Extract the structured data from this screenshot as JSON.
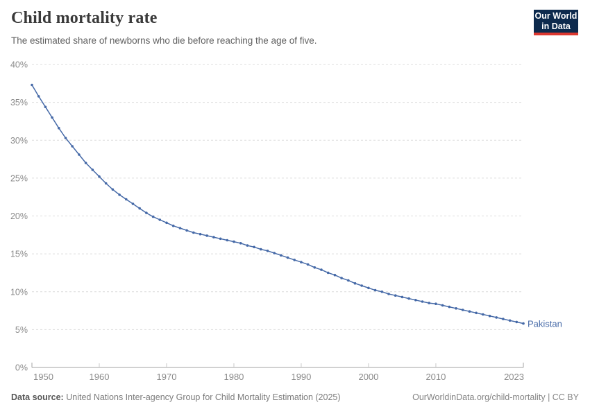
{
  "header": {
    "title": "Child mortality rate",
    "subtitle": "The estimated share of newborns who die before reaching the age of five."
  },
  "logo": {
    "line1": "Our World",
    "line2": "in Data",
    "bg_color": "#0d2a4d",
    "accent_color": "#dc3830"
  },
  "chart_data": {
    "type": "line",
    "title": "Child mortality rate",
    "xlabel": "",
    "ylabel": "",
    "unit": "%",
    "ylim": [
      0,
      40
    ],
    "yticks": [
      0,
      5,
      10,
      15,
      20,
      25,
      30,
      35,
      40
    ],
    "xticks": [
      1950,
      1960,
      1970,
      1980,
      1990,
      2000,
      2010,
      2023
    ],
    "grid": "horizontal-dashed",
    "legend_position": "end-of-line-label",
    "x": [
      1950,
      1951,
      1952,
      1953,
      1954,
      1955,
      1956,
      1957,
      1958,
      1959,
      1960,
      1961,
      1962,
      1963,
      1964,
      1965,
      1966,
      1967,
      1968,
      1969,
      1970,
      1971,
      1972,
      1973,
      1974,
      1975,
      1976,
      1977,
      1978,
      1979,
      1980,
      1981,
      1982,
      1983,
      1984,
      1985,
      1986,
      1987,
      1988,
      1989,
      1990,
      1991,
      1992,
      1993,
      1994,
      1995,
      1996,
      1997,
      1998,
      1999,
      2000,
      2001,
      2002,
      2003,
      2004,
      2005,
      2006,
      2007,
      2008,
      2009,
      2010,
      2011,
      2012,
      2013,
      2014,
      2015,
      2016,
      2017,
      2018,
      2019,
      2020,
      2021,
      2022,
      2023
    ],
    "series": [
      {
        "name": "Pakistan",
        "color": "#4569a7",
        "values": [
          37.3,
          35.8,
          34.4,
          33.0,
          31.6,
          30.3,
          29.2,
          28.1,
          27.0,
          26.1,
          25.2,
          24.3,
          23.5,
          22.8,
          22.2,
          21.6,
          21.0,
          20.4,
          19.9,
          19.5,
          19.1,
          18.7,
          18.4,
          18.1,
          17.8,
          17.6,
          17.4,
          17.2,
          17.0,
          16.8,
          16.6,
          16.4,
          16.1,
          15.9,
          15.6,
          15.4,
          15.1,
          14.8,
          14.5,
          14.2,
          13.9,
          13.6,
          13.2,
          12.9,
          12.5,
          12.2,
          11.8,
          11.5,
          11.1,
          10.8,
          10.5,
          10.2,
          10.0,
          9.7,
          9.5,
          9.3,
          9.1,
          8.9,
          8.7,
          8.5,
          8.4,
          8.2,
          8.0,
          7.8,
          7.6,
          7.4,
          7.2,
          7.0,
          6.8,
          6.6,
          6.4,
          6.2,
          6.0,
          5.8
        ]
      }
    ],
    "axis_colors": {
      "axis_line": "#a3a3a3",
      "tick": "#c9c9c9",
      "grid": "#dcdcdc",
      "label": "#8a8a8a"
    }
  },
  "footer": {
    "datasource_label": "Data source:",
    "datasource_text": "United Nations Inter-agency Group for Child Mortality Estimation (2025)",
    "link_text": "OurWorldinData.org/child-mortality | CC BY"
  }
}
